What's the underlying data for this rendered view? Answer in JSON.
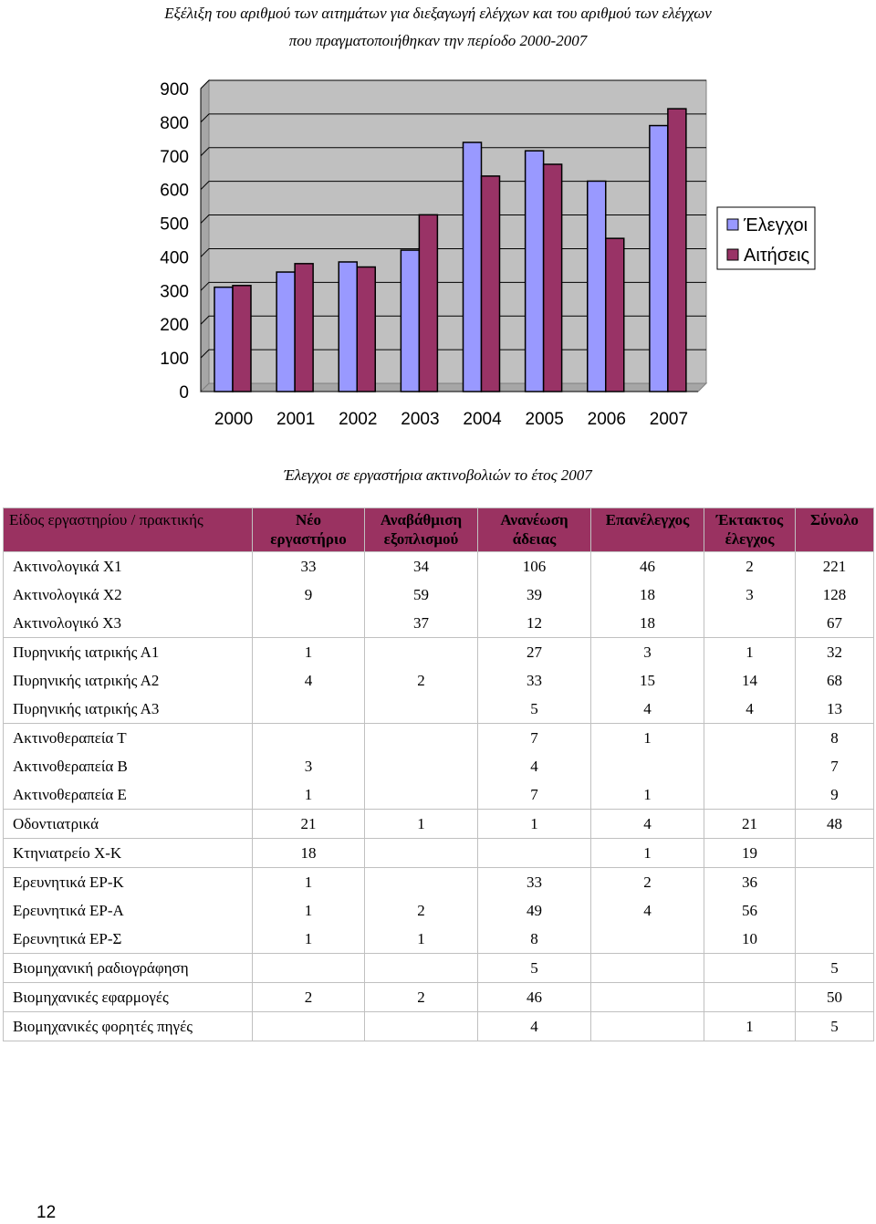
{
  "caption_top": {
    "line1": "Εξέλιξη του αριθμού των αιτημάτων για διεξαγωγή ελέγχων και του αριθμού των ελέγχων",
    "line2": "που πραγματοποιήθηκαν την περίοδο 2000-2007"
  },
  "chart_data": {
    "type": "bar",
    "categories": [
      "2000",
      "2001",
      "2002",
      "2003",
      "2004",
      "2005",
      "2006",
      "2007"
    ],
    "series": [
      {
        "name": "Έλεγχοι",
        "values": [
          310,
          355,
          385,
          420,
          740,
          715,
          625,
          790
        ],
        "color": "#9999ff"
      },
      {
        "name": "Αιτήσεις",
        "values": [
          315,
          380,
          370,
          525,
          640,
          675,
          455,
          840
        ],
        "color": "#993366"
      }
    ],
    "ylim": [
      0,
      900
    ],
    "yticks": [
      "0",
      "100",
      "200",
      "300",
      "400",
      "500",
      "600",
      "700",
      "800",
      "900"
    ],
    "grid": true,
    "legend": "right"
  },
  "caption_table": "Έλεγχοι σε εργαστήρια ακτινοβολιών το έτος 2007",
  "table": {
    "headers": [
      {
        "line1": "Είδος εργαστηρίου / πρακτικής",
        "line2": ""
      },
      {
        "line1": "Νέο",
        "line2": "εργαστήριο"
      },
      {
        "line1": "Αναβάθμιση",
        "line2": "εξοπλισμού"
      },
      {
        "line1": "Ανανέωση",
        "line2": "άδειας"
      },
      {
        "line1": "Επανέλεγχος",
        "line2": ""
      },
      {
        "line1": "Έκτακτος",
        "line2": "έλεγχος"
      },
      {
        "line1": "Σύνολο",
        "line2": ""
      }
    ],
    "groups": [
      [
        [
          "Ακτινολογικά Χ1",
          "33",
          "34",
          "106",
          "46",
          "2",
          "221"
        ],
        [
          "Ακτινολογικά Χ2",
          "9",
          "59",
          "39",
          "18",
          "3",
          "128"
        ],
        [
          "Ακτινολογικό Χ3",
          "",
          "37",
          "12",
          "18",
          "",
          "67"
        ]
      ],
      [
        [
          "Πυρηνικής ιατρικής Α1",
          "1",
          "",
          "27",
          "3",
          "1",
          "32"
        ],
        [
          "Πυρηνικής ιατρικής Α2",
          "4",
          "2",
          "33",
          "15",
          "14",
          "68"
        ],
        [
          "Πυρηνικής ιατρικής Α3",
          "",
          "",
          "5",
          "4",
          "4",
          "13"
        ]
      ],
      [
        [
          "Ακτινοθεραπεία Τ",
          "",
          "",
          "7",
          "1",
          "",
          "8"
        ],
        [
          "Ακτινοθεραπεία Β",
          "3",
          "",
          "4",
          "",
          "",
          "7"
        ],
        [
          "Ακτινοθεραπεία Ε",
          "1",
          "",
          "7",
          "1",
          "",
          "9"
        ]
      ],
      [
        [
          "Οδοντιατρικά",
          "21",
          "1",
          "1",
          "4",
          "21",
          "48"
        ]
      ],
      [
        [
          "Κτηνιατρείο Χ-Κ",
          "18",
          "",
          "",
          "1",
          "19",
          ""
        ]
      ],
      [
        [
          "Ερευνητικά ΕΡ-Κ",
          "1",
          "",
          "33",
          "2",
          "36",
          ""
        ],
        [
          "Ερευνητικά ΕΡ-Α",
          "1",
          "2",
          "49",
          "4",
          "56",
          ""
        ],
        [
          "Ερευνητικά ΕΡ-Σ",
          "1",
          "1",
          "8",
          "",
          "10",
          ""
        ]
      ],
      [
        [
          "Βιομηχανική ραδιογράφηση",
          "",
          "",
          "5",
          "",
          "",
          "5"
        ]
      ],
      [
        [
          "Βιομηχανικές εφαρμογές",
          "2",
          "2",
          "46",
          "",
          "",
          "50"
        ]
      ],
      [
        [
          "Βιομηχανικές φορητές πηγές",
          "",
          "",
          "4",
          "",
          "1",
          "5"
        ]
      ]
    ]
  },
  "page_number": "12"
}
